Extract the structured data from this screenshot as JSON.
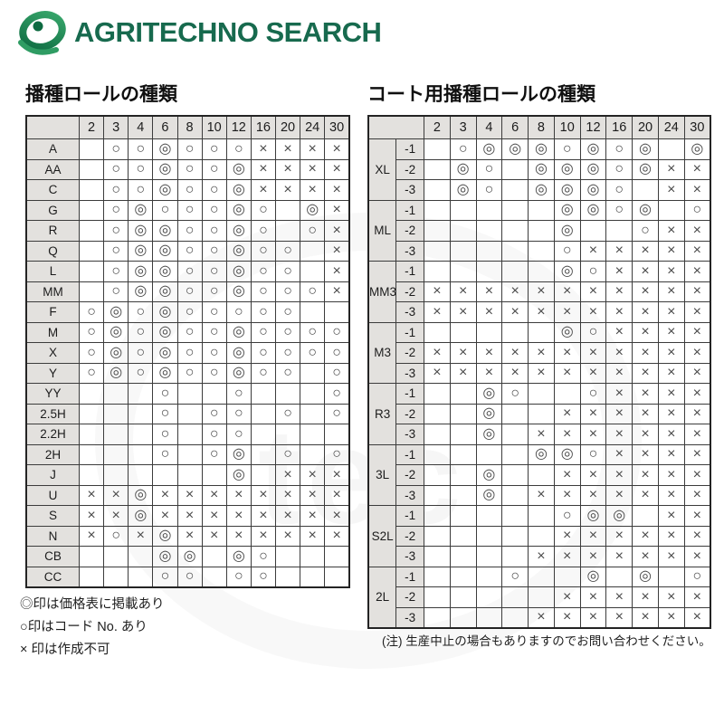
{
  "header": {
    "brand": "AGRITECHNO SEARCH"
  },
  "left_table": {
    "title": "播種ロールの種類",
    "columns": [
      "2",
      "3",
      "4",
      "6",
      "8",
      "10",
      "12",
      "16",
      "20",
      "24",
      "30"
    ],
    "rows": [
      {
        "label": "A",
        "cells": [
          "",
          "○",
          "○",
          "◎",
          "○",
          "○",
          "○",
          "×",
          "×",
          "×",
          "×"
        ]
      },
      {
        "label": "AA",
        "cells": [
          "",
          "○",
          "○",
          "◎",
          "○",
          "○",
          "◎",
          "×",
          "×",
          "×",
          "×"
        ]
      },
      {
        "label": "C",
        "cells": [
          "",
          "○",
          "○",
          "◎",
          "○",
          "○",
          "◎",
          "×",
          "×",
          "×",
          "×"
        ]
      },
      {
        "label": "G",
        "cells": [
          "",
          "○",
          "◎",
          "○",
          "○",
          "○",
          "◎",
          "○",
          "",
          "◎",
          "×"
        ]
      },
      {
        "label": "R",
        "cells": [
          "",
          "○",
          "◎",
          "◎",
          "○",
          "○",
          "◎",
          "○",
          "",
          "○",
          "×"
        ]
      },
      {
        "label": "Q",
        "cells": [
          "",
          "○",
          "◎",
          "◎",
          "○",
          "○",
          "◎",
          "○",
          "○",
          "",
          "×"
        ]
      },
      {
        "label": "L",
        "cells": [
          "",
          "○",
          "◎",
          "◎",
          "○",
          "○",
          "◎",
          "○",
          "○",
          "",
          "×"
        ]
      },
      {
        "label": "MM",
        "cells": [
          "",
          "○",
          "◎",
          "◎",
          "○",
          "○",
          "◎",
          "○",
          "○",
          "○",
          "×"
        ]
      },
      {
        "label": "F",
        "cells": [
          "○",
          "◎",
          "○",
          "◎",
          "○",
          "○",
          "○",
          "○",
          "○",
          "",
          ""
        ]
      },
      {
        "label": "M",
        "cells": [
          "○",
          "◎",
          "○",
          "◎",
          "○",
          "○",
          "◎",
          "○",
          "○",
          "○",
          "○"
        ]
      },
      {
        "label": "X",
        "cells": [
          "○",
          "◎",
          "○",
          "◎",
          "○",
          "○",
          "◎",
          "○",
          "○",
          "○",
          "○"
        ]
      },
      {
        "label": "Y",
        "cells": [
          "○",
          "◎",
          "○",
          "◎",
          "○",
          "○",
          "◎",
          "○",
          "○",
          "",
          "○"
        ]
      },
      {
        "label": "YY",
        "cells": [
          "",
          "",
          "",
          "○",
          "",
          "",
          "○",
          "",
          "",
          "",
          "○"
        ]
      },
      {
        "label": "2.5H",
        "cells": [
          "",
          "",
          "",
          "○",
          "",
          "○",
          "○",
          "",
          "○",
          "",
          "○"
        ]
      },
      {
        "label": "2.2H",
        "cells": [
          "",
          "",
          "",
          "○",
          "",
          "○",
          "○",
          "",
          "",
          "",
          ""
        ]
      },
      {
        "label": "2H",
        "cells": [
          "",
          "",
          "",
          "○",
          "",
          "○",
          "◎",
          "",
          "○",
          "",
          "○"
        ]
      },
      {
        "label": "J",
        "cells": [
          "",
          "",
          "",
          "",
          "",
          "",
          "◎",
          "",
          "×",
          "×",
          "×"
        ]
      },
      {
        "label": "U",
        "cells": [
          "×",
          "×",
          "◎",
          "×",
          "×",
          "×",
          "×",
          "×",
          "×",
          "×",
          "×"
        ]
      },
      {
        "label": "S",
        "cells": [
          "×",
          "×",
          "◎",
          "×",
          "×",
          "×",
          "×",
          "×",
          "×",
          "×",
          "×"
        ]
      },
      {
        "label": "N",
        "cells": [
          "×",
          "○",
          "×",
          "◎",
          "×",
          "×",
          "×",
          "×",
          "×",
          "×",
          "×"
        ]
      },
      {
        "label": "CB",
        "cells": [
          "",
          "",
          "",
          "◎",
          "◎",
          "",
          "◎",
          "○",
          "",
          "",
          ""
        ]
      },
      {
        "label": "CC",
        "cells": [
          "",
          "",
          "",
          "○",
          "○",
          "",
          "○",
          "○",
          "",
          "",
          ""
        ]
      }
    ]
  },
  "right_table": {
    "title": "コート用播種ロールの種類",
    "columns": [
      "2",
      "3",
      "4",
      "6",
      "8",
      "10",
      "12",
      "16",
      "20",
      "24",
      "30"
    ],
    "groups": [
      {
        "label": "XL",
        "rows": [
          {
            "label": "-1",
            "cells": [
              "",
              "○",
              "◎",
              "◎",
              "◎",
              "○",
              "◎",
              "○",
              "◎",
              "",
              "◎"
            ]
          },
          {
            "label": "-2",
            "cells": [
              "",
              "◎",
              "○",
              "",
              "◎",
              "◎",
              "◎",
              "○",
              "◎",
              "×",
              "×"
            ]
          },
          {
            "label": "-3",
            "cells": [
              "",
              "◎",
              "○",
              "",
              "◎",
              "◎",
              "◎",
              "○",
              "",
              "×",
              "×"
            ]
          }
        ]
      },
      {
        "label": "ML",
        "rows": [
          {
            "label": "-1",
            "cells": [
              "",
              "",
              "",
              "",
              "",
              "◎",
              "◎",
              "○",
              "◎",
              "",
              "○"
            ]
          },
          {
            "label": "-2",
            "cells": [
              "",
              "",
              "",
              "",
              "",
              "◎",
              "",
              "",
              "○",
              "×",
              "×"
            ]
          },
          {
            "label": "-3",
            "cells": [
              "",
              "",
              "",
              "",
              "",
              "○",
              "×",
              "×",
              "×",
              "×",
              "×"
            ]
          }
        ]
      },
      {
        "label": "MM3",
        "rows": [
          {
            "label": "-1",
            "cells": [
              "",
              "",
              "",
              "",
              "",
              "◎",
              "○",
              "×",
              "×",
              "×",
              "×"
            ]
          },
          {
            "label": "-2",
            "cells": [
              "×",
              "×",
              "×",
              "×",
              "×",
              "×",
              "×",
              "×",
              "×",
              "×",
              "×"
            ]
          },
          {
            "label": "-3",
            "cells": [
              "×",
              "×",
              "×",
              "×",
              "×",
              "×",
              "×",
              "×",
              "×",
              "×",
              "×"
            ]
          }
        ]
      },
      {
        "label": "M3",
        "rows": [
          {
            "label": "-1",
            "cells": [
              "",
              "",
              "",
              "",
              "",
              "◎",
              "○",
              "×",
              "×",
              "×",
              "×"
            ]
          },
          {
            "label": "-2",
            "cells": [
              "×",
              "×",
              "×",
              "×",
              "×",
              "×",
              "×",
              "×",
              "×",
              "×",
              "×"
            ]
          },
          {
            "label": "-3",
            "cells": [
              "×",
              "×",
              "×",
              "×",
              "×",
              "×",
              "×",
              "×",
              "×",
              "×",
              "×"
            ]
          }
        ]
      },
      {
        "label": "R3",
        "rows": [
          {
            "label": "-1",
            "cells": [
              "",
              "",
              "◎",
              "○",
              "",
              "",
              "○",
              "×",
              "×",
              "×",
              "×"
            ]
          },
          {
            "label": "-2",
            "cells": [
              "",
              "",
              "◎",
              "",
              "",
              "×",
              "×",
              "×",
              "×",
              "×",
              "×"
            ]
          },
          {
            "label": "-3",
            "cells": [
              "",
              "",
              "◎",
              "",
              "×",
              "×",
              "×",
              "×",
              "×",
              "×",
              "×"
            ]
          }
        ]
      },
      {
        "label": "3L",
        "rows": [
          {
            "label": "-1",
            "cells": [
              "",
              "",
              "",
              "",
              "◎",
              "◎",
              "○",
              "×",
              "×",
              "×",
              "×"
            ]
          },
          {
            "label": "-2",
            "cells": [
              "",
              "",
              "◎",
              "",
              "",
              "×",
              "×",
              "×",
              "×",
              "×",
              "×"
            ]
          },
          {
            "label": "-3",
            "cells": [
              "",
              "",
              "◎",
              "",
              "×",
              "×",
              "×",
              "×",
              "×",
              "×",
              "×"
            ]
          }
        ]
      },
      {
        "label": "S2L",
        "rows": [
          {
            "label": "-1",
            "cells": [
              "",
              "",
              "",
              "",
              "",
              "○",
              "◎",
              "◎",
              "",
              "×",
              "×"
            ]
          },
          {
            "label": "-2",
            "cells": [
              "",
              "",
              "",
              "",
              "",
              "×",
              "×",
              "×",
              "×",
              "×",
              "×"
            ]
          },
          {
            "label": "-3",
            "cells": [
              "",
              "",
              "",
              "",
              "×",
              "×",
              "×",
              "×",
              "×",
              "×",
              "×"
            ]
          }
        ]
      },
      {
        "label": "2L",
        "rows": [
          {
            "label": "-1",
            "cells": [
              "",
              "",
              "",
              "○",
              "",
              "",
              "◎",
              "",
              "◎",
              "",
              "○"
            ]
          },
          {
            "label": "-2",
            "cells": [
              "",
              "",
              "",
              "",
              "",
              "×",
              "×",
              "×",
              "×",
              "×",
              "×"
            ]
          },
          {
            "label": "-3",
            "cells": [
              "",
              "",
              "",
              "",
              "×",
              "×",
              "×",
              "×",
              "×",
              "×",
              "×"
            ]
          }
        ]
      }
    ]
  },
  "legend": {
    "items": [
      "◎印は価格表に掲載あり",
      "○印はコード No. あり",
      "× 印は作成不可"
    ]
  },
  "note": "(注) 生産中止の場合もありますのでお問い合わせください。",
  "watermark": "tec",
  "colors": {
    "brand_green": "#176a4e",
    "symbol": "#4a4a4a",
    "cell_gray": "#e3e1de"
  }
}
